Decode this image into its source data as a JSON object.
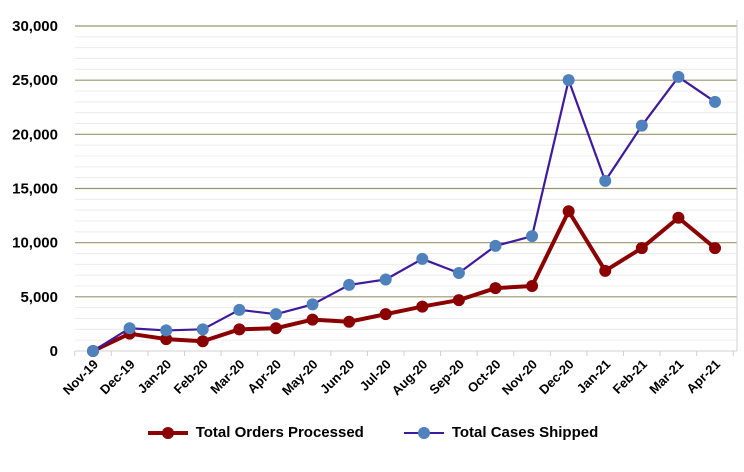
{
  "chart_data": {
    "type": "line",
    "title": "",
    "xlabel": "",
    "ylabel": "",
    "ylim": [
      0,
      30000
    ],
    "yticks": [
      "0",
      "5,000",
      "10,000",
      "15,000",
      "20,000",
      "25,000",
      "30,000"
    ],
    "ytick_values": [
      0,
      5000,
      10000,
      15000,
      20000,
      25000,
      30000
    ],
    "grid": true,
    "legend_position": "bottom",
    "categories": [
      "Nov-19",
      "Dec-19",
      "Jan-20",
      "Feb-20",
      "Mar-20",
      "Apr-20",
      "May-20",
      "Jun-20",
      "Jul-20",
      "Aug-20",
      "Sep-20",
      "Oct-20",
      "Nov-20",
      "Dec-20",
      "Jan-21",
      "Feb-21",
      "Mar-21",
      "Apr-21"
    ],
    "series": [
      {
        "name": "Total Orders Processed",
        "color": "#8B0000",
        "marker_color": "#8B0000",
        "values": [
          0,
          1600,
          1100,
          900,
          2000,
          2100,
          2900,
          2700,
          3400,
          4100,
          4700,
          5800,
          6000,
          12900,
          7400,
          9500,
          12300,
          9500
        ]
      },
      {
        "name": "Total Cases Shipped",
        "color": "#3F1A9E",
        "marker_color": "#4F81BD",
        "values": [
          0,
          2100,
          1900,
          2000,
          3800,
          3400,
          4300,
          6100,
          6600,
          8500,
          7200,
          9700,
          10600,
          25000,
          15700,
          20800,
          25300,
          23000
        ]
      }
    ]
  }
}
